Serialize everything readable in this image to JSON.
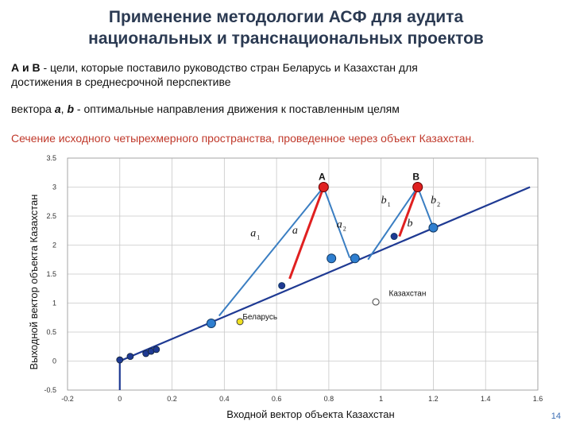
{
  "slide": {
    "title_line1": "Применение методологии  АСФ для аудита",
    "title_line2": "национальных и транснациональных проектов",
    "p1_lead": "А и В",
    "p1_text": " - цели, которые поставило руководство стран Беларусь и Казахстан для",
    "p1_text2": "достижения в среднесрочной перспективе",
    "p2_prefix": "вектора ",
    "p2_a": "а",
    "p2_sep": ", ",
    "p2_b": "b",
    "p2_text": " -  оптимальные направления движения к поставленным целям",
    "section_caption": "Сечение исходного четырехмерного пространства, проведенное через объект Казахстан.",
    "page_number": "14"
  },
  "chart_data": {
    "type": "scatter",
    "xlabel": "Входной вектор объекта  Казахстан",
    "ylabel": "Выходной вектор объекта  Казахстан",
    "xlim": [
      -0.2,
      1.6
    ],
    "ylim": [
      -0.5,
      3.5
    ],
    "xticks": [
      "-0.2",
      "0",
      "0.2",
      "0.4",
      "0.6",
      "0.8",
      "1",
      "1.2",
      "1.4",
      "1.6"
    ],
    "yticks": [
      "-0.5",
      "0",
      "0.5",
      "1",
      "1.5",
      "2",
      "2.5",
      "3",
      "3.5"
    ],
    "grid": true,
    "colors": {
      "line": "#1f3a93",
      "red_vector": "#e02020",
      "blue_vector": "#3a7ec2",
      "goal": "#e02020",
      "point": "#2f7fd0",
      "dark_point": "#1f3a93",
      "belarus": "#f0e020"
    },
    "trajectory": [
      [
        0,
        -0.5
      ],
      [
        0,
        0
      ],
      [
        1.57,
        3.0
      ]
    ],
    "trajectory_points": [
      [
        0.0,
        0.02
      ],
      [
        0.04,
        0.08
      ],
      [
        0.1,
        0.13
      ],
      [
        0.12,
        0.17
      ],
      [
        0.14,
        0.2
      ]
    ],
    "goals": [
      {
        "label": "А",
        "x": 0.78,
        "y": 3.0
      },
      {
        "label": "В",
        "x": 1.14,
        "y": 3.0
      }
    ],
    "vectors": [
      {
        "label": "a",
        "from": [
          0.65,
          1.42
        ],
        "to": [
          0.78,
          3.0
        ],
        "kind": "red"
      },
      {
        "label": "b",
        "from": [
          1.07,
          2.15
        ],
        "to": [
          1.14,
          3.0
        ],
        "kind": "red"
      },
      {
        "label": "a1",
        "from": [
          0.38,
          0.78
        ],
        "to": [
          0.78,
          3.0
        ],
        "kind": "blue"
      },
      {
        "label": "a2",
        "from": [
          0.88,
          1.78
        ],
        "to": [
          0.78,
          3.0
        ],
        "kind": "blue"
      },
      {
        "label": "b1",
        "from": [
          0.95,
          1.75
        ],
        "to": [
          1.14,
          3.0
        ],
        "kind": "blue"
      },
      {
        "label": "b2",
        "from": [
          1.2,
          2.3
        ],
        "to": [
          1.14,
          3.0
        ],
        "kind": "blue"
      }
    ],
    "points": [
      {
        "x": 0.35,
        "y": 0.65,
        "kind": "blue"
      },
      {
        "x": 0.81,
        "y": 1.77,
        "kind": "blue"
      },
      {
        "x": 0.9,
        "y": 1.77,
        "kind": "blue"
      },
      {
        "x": 1.2,
        "y": 2.3,
        "kind": "blue"
      },
      {
        "x": 0.62,
        "y": 1.3,
        "kind": "dark"
      },
      {
        "x": 1.05,
        "y": 2.15,
        "kind": "dark"
      }
    ],
    "annotations": [
      {
        "text": "Беларусь",
        "x": 0.47,
        "y": 0.72,
        "marker_x": 0.46,
        "marker_y": 0.68,
        "marker": "yellow"
      },
      {
        "text": "Казахстан",
        "x": 1.03,
        "y": 1.12,
        "marker_x": 0.98,
        "marker_y": 1.02,
        "marker": "white"
      }
    ],
    "vector_labels": [
      {
        "text": "a",
        "sub": "1",
        "x": 0.5,
        "y": 2.15
      },
      {
        "text": "a",
        "sub": "",
        "x": 0.66,
        "y": 2.2
      },
      {
        "text": "a",
        "sub": "2",
        "x": 0.83,
        "y": 2.3
      },
      {
        "text": "b",
        "sub": "1",
        "x": 1.0,
        "y": 2.72
      },
      {
        "text": "b",
        "sub": "2",
        "x": 1.19,
        "y": 2.72
      },
      {
        "text": "b",
        "sub": "",
        "x": 1.1,
        "y": 2.32
      }
    ]
  }
}
